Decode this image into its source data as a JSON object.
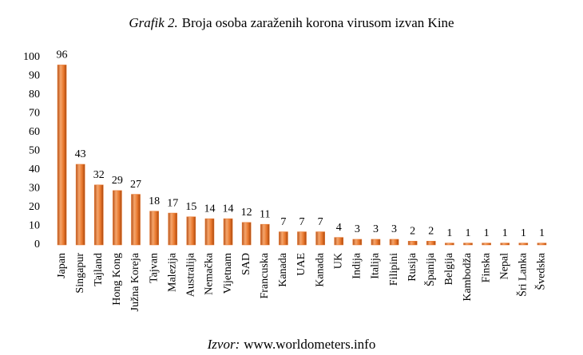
{
  "chart_data": {
    "type": "bar",
    "title_number": "Grafik 2.",
    "title": "Broja osoba zaraženih korona virusom izvan Kine",
    "source_label": "Izvor:",
    "source": "www.worldometers.info",
    "categories": [
      "Japan",
      "Singapur",
      "Tajland",
      "Hong Kong",
      "Južna Koreja",
      "Tajvan",
      "Malezija",
      "Australija",
      "Nemačka",
      "Vijetnam",
      "SAD",
      "Francuska",
      "Kanada",
      "UAE",
      "Kanada",
      "UK",
      "Indija",
      "Italija",
      "Filipini",
      "Rusija",
      "Španija",
      "Belgija",
      "Kambodža",
      "Finska",
      "Nepal",
      "Šri Lanka",
      "Švedska"
    ],
    "values": [
      96,
      43,
      32,
      29,
      27,
      18,
      17,
      15,
      14,
      14,
      12,
      11,
      7,
      7,
      7,
      4,
      3,
      3,
      3,
      2,
      2,
      1,
      1,
      1,
      1,
      1,
      1
    ],
    "color": "#e8762b",
    "ylim": [
      0,
      100
    ],
    "yticks": [
      0,
      10,
      20,
      30,
      40,
      50,
      60,
      70,
      80,
      90,
      100
    ],
    "grid": false
  }
}
